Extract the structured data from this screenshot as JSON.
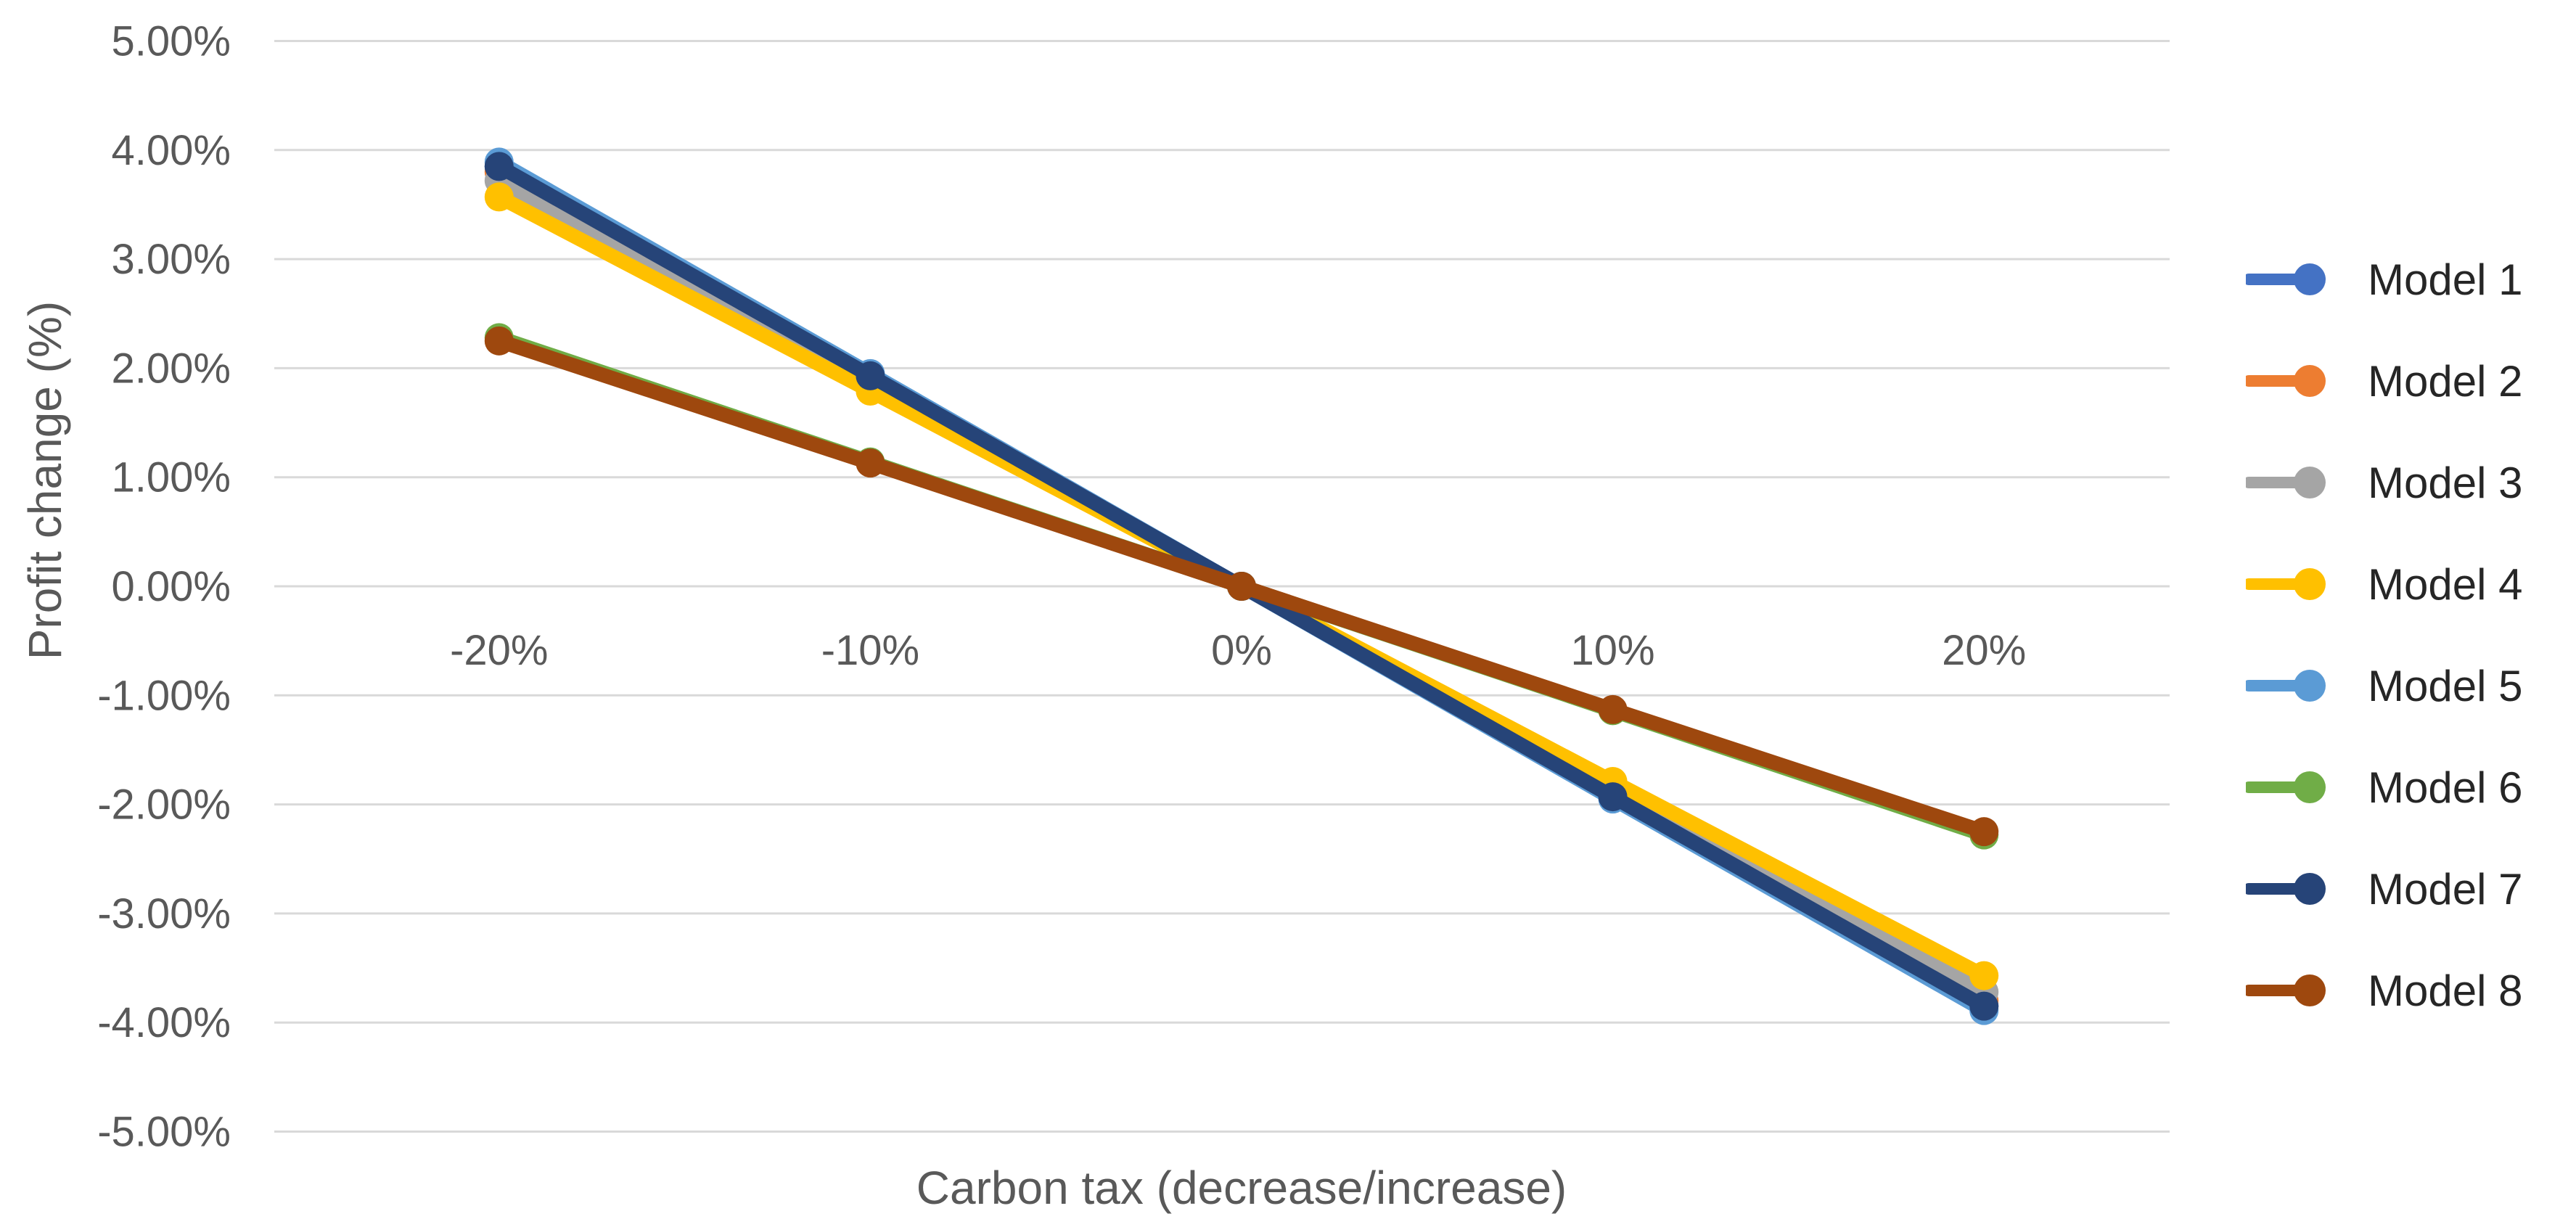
{
  "chart_data": {
    "type": "line",
    "title": "",
    "xlabel": "Carbon tax (decrease/increase)",
    "ylabel": "Profit change (%)",
    "categories": [
      "-20%",
      "-10%",
      "0%",
      "10%",
      "20%"
    ],
    "x_numeric": [
      -20,
      -10,
      0,
      10,
      20
    ],
    "ylim": [
      -5,
      5
    ],
    "y_tick_step": 1,
    "y_tick_labels": [
      "5.00%",
      "4.00%",
      "3.00%",
      "2.00%",
      "1.00%",
      "0.00%",
      "-1.00%",
      "-2.00%",
      "-3.00%",
      "-4.00%",
      "-5.00%"
    ],
    "grid": true,
    "legend_position": "right",
    "marker": "circle",
    "series": [
      {
        "name": "Model 1",
        "color": "#4472C4",
        "values": [
          3.85,
          1.93,
          0,
          -1.93,
          -3.85
        ]
      },
      {
        "name": "Model 2",
        "color": "#ED7D31",
        "values": [
          3.8,
          1.9,
          0,
          -1.9,
          -3.8
        ]
      },
      {
        "name": "Model 3",
        "color": "#A5A5A5",
        "values": [
          3.72,
          1.86,
          0,
          -1.86,
          -3.72
        ]
      },
      {
        "name": "Model 4",
        "color": "#FFC000",
        "values": [
          3.57,
          1.79,
          0,
          -1.79,
          -3.57
        ]
      },
      {
        "name": "Model 5",
        "color": "#5B9BD5",
        "values": [
          3.89,
          1.95,
          0,
          -1.95,
          -3.89
        ]
      },
      {
        "name": "Model 6",
        "color": "#70AD47",
        "values": [
          2.28,
          1.14,
          0,
          -1.14,
          -2.28
        ]
      },
      {
        "name": "Model 7",
        "color": "#264478",
        "values": [
          3.85,
          1.93,
          0,
          -1.93,
          -3.85
        ]
      },
      {
        "name": "Model 8",
        "color": "#9E480E",
        "values": [
          2.25,
          1.13,
          0,
          -1.13,
          -2.25
        ]
      }
    ]
  },
  "colors": {
    "gridline": "#D9D9D9",
    "axis_text": "#595959",
    "legend_text": "#262626",
    "background": "#FFFFFF"
  }
}
